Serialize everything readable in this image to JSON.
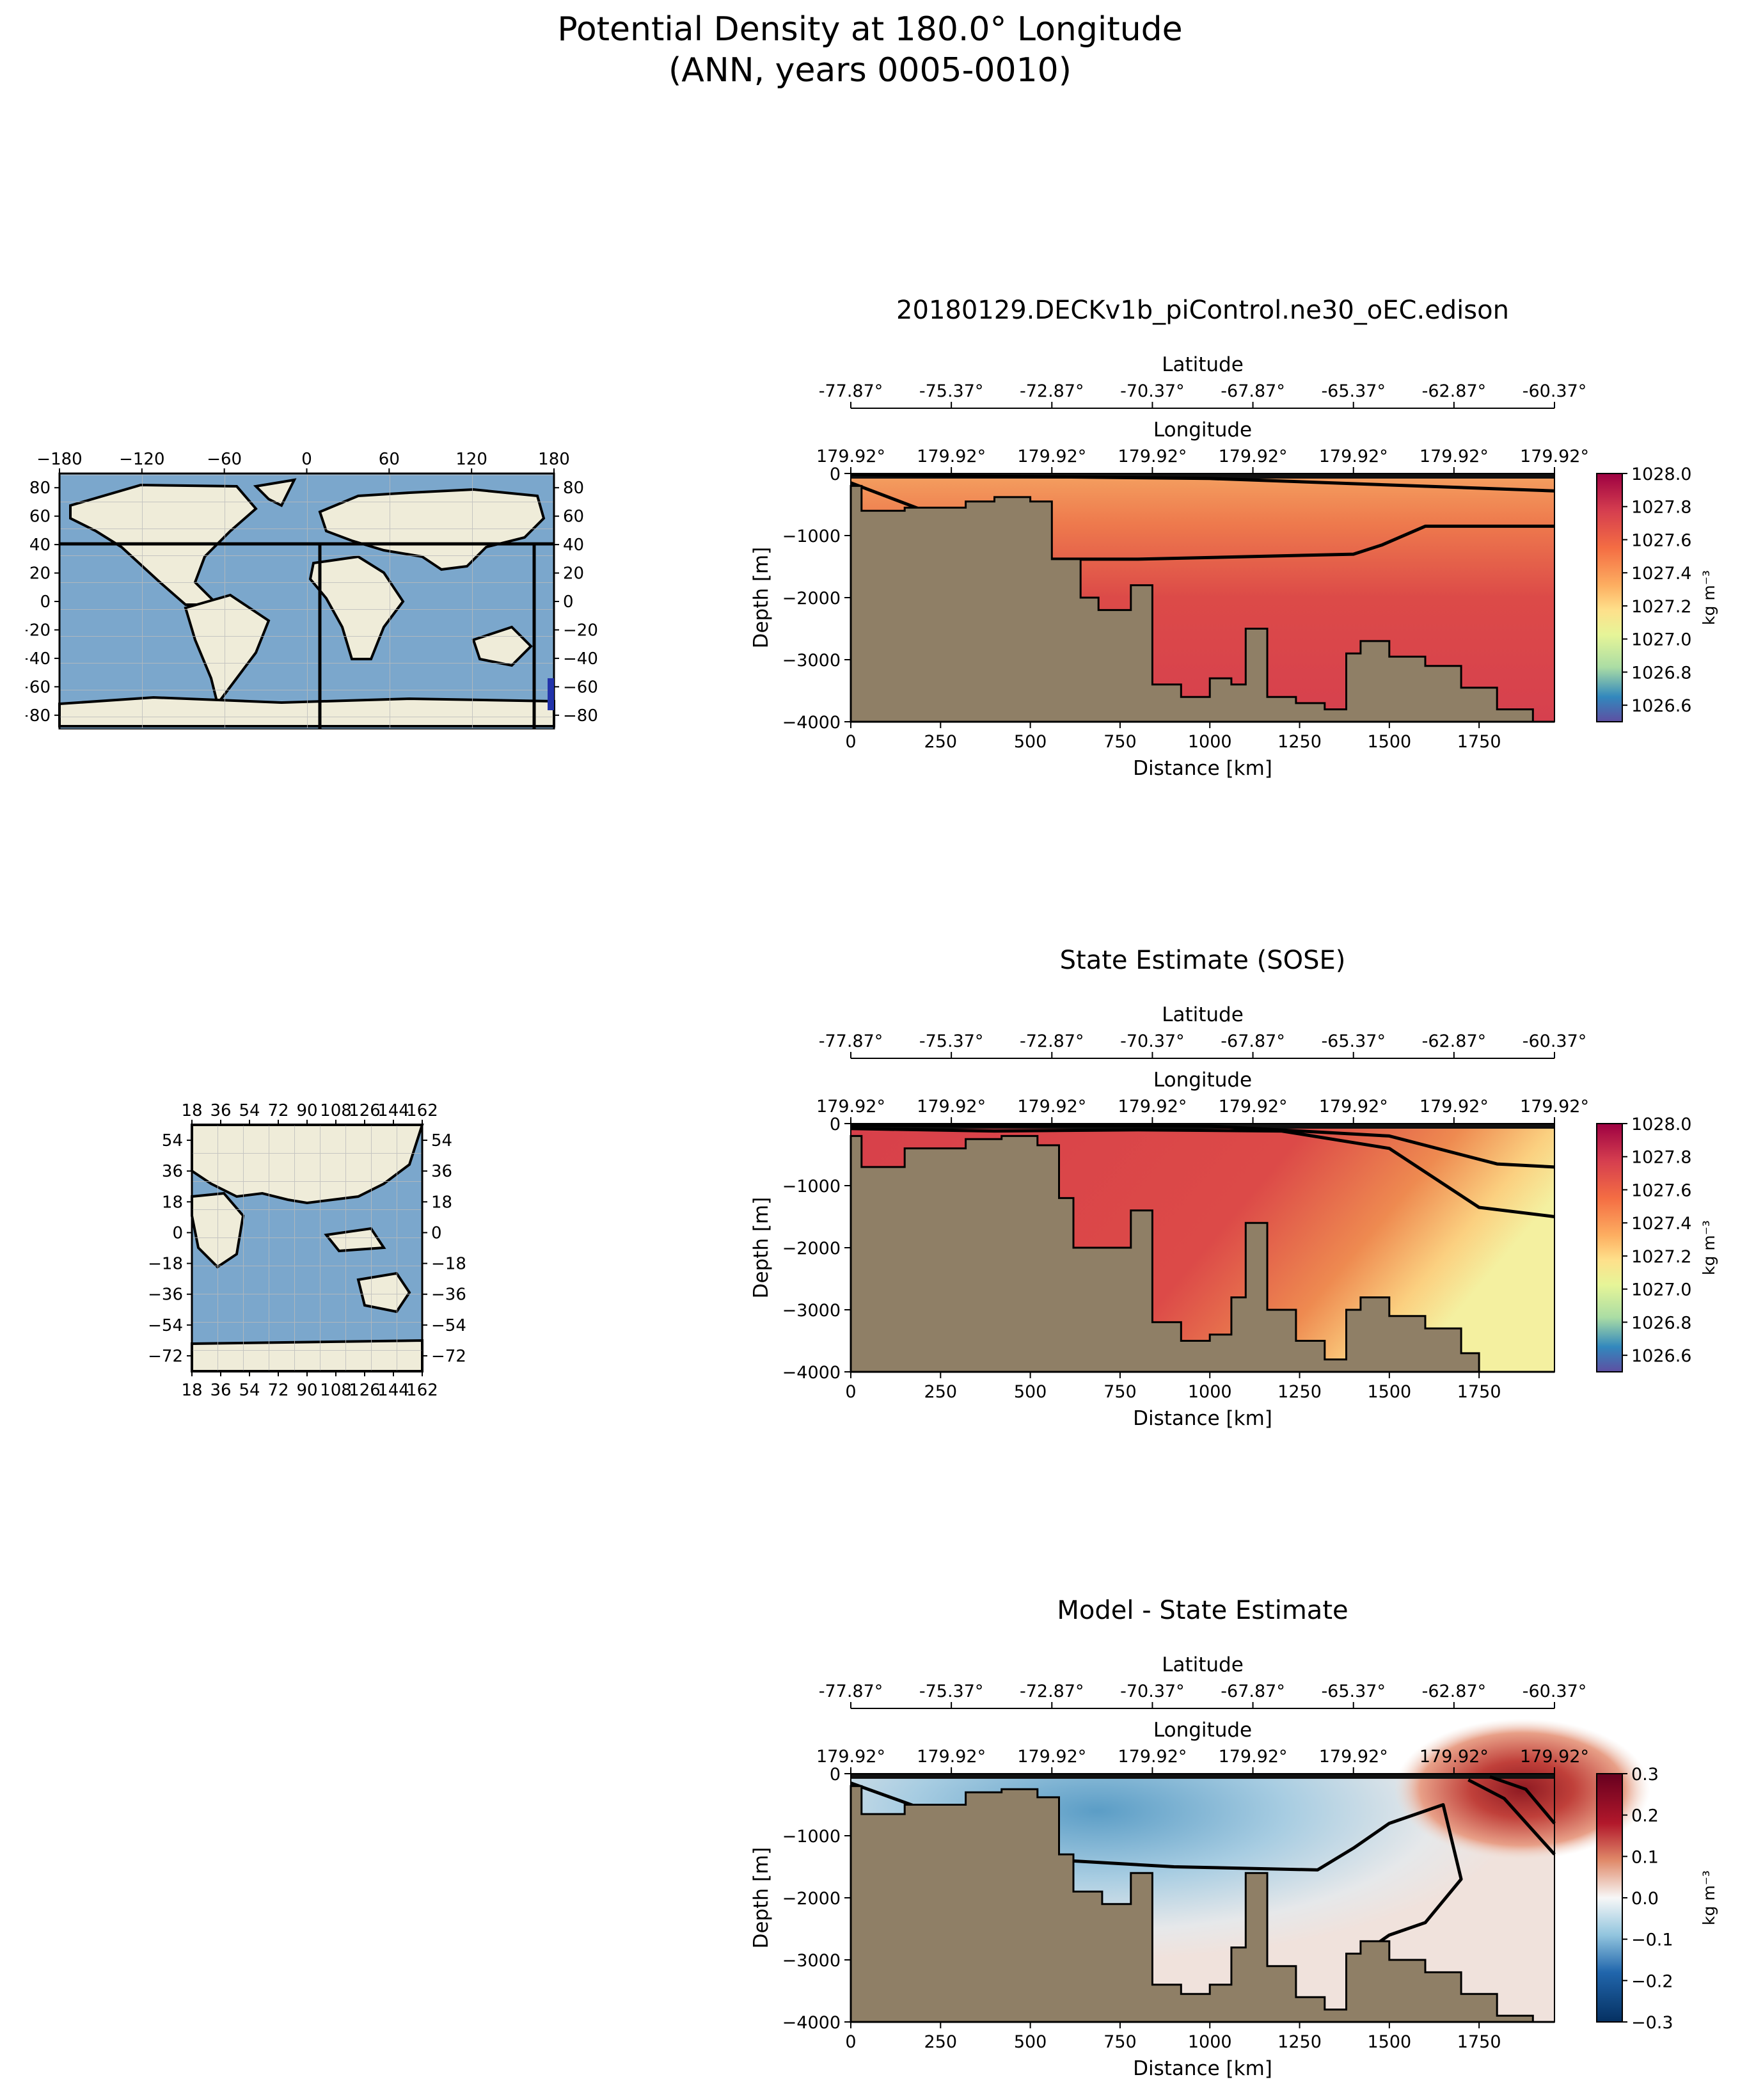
{
  "figure": {
    "title_line1": "Potential Density at 180.0° Longitude",
    "title_line2": "(ANN, years 0005-0010)"
  },
  "maps": [
    {
      "name": "global-map",
      "x_ticks": [
        "−180",
        "−120",
        "−60",
        "0",
        "60",
        "120",
        "180"
      ],
      "y_ticks": [
        "80",
        "60",
        "40",
        "20",
        "0",
        "−20",
        "−40",
        "−60",
        "−80"
      ]
    },
    {
      "name": "indo-pacific-map",
      "x_ticks": [
        "18",
        "36",
        "54",
        "72",
        "90",
        "108",
        "126",
        "144",
        "162"
      ],
      "y_ticks": [
        "54",
        "36",
        "18",
        "0",
        "−18",
        "−36",
        "−54",
        "−72"
      ]
    }
  ],
  "panels": [
    {
      "title": "20180129.DECKv1b_piControl.ne30_oEC.edison",
      "colorbar_ticks": [
        "1028.0",
        "1027.8",
        "1027.6",
        "1027.4",
        "1027.2",
        "1027.0",
        "1026.8",
        "1026.6"
      ],
      "colorbar_label": "kg m⁻³"
    },
    {
      "title": "State Estimate (SOSE)",
      "colorbar_ticks": [
        "1028.0",
        "1027.8",
        "1027.6",
        "1027.4",
        "1027.2",
        "1027.0",
        "1026.8",
        "1026.6"
      ],
      "colorbar_label": "kg m⁻³"
    },
    {
      "title": "Model - State Estimate",
      "colorbar_ticks": [
        "0.3",
        "0.2",
        "0.1",
        "0.0",
        "−0.1",
        "−0.2",
        "−0.3"
      ],
      "colorbar_label": "kg m⁻³"
    }
  ],
  "axes": {
    "xlabel": "Distance [km]",
    "ylabel": "Depth [m]",
    "lat_label": "Latitude",
    "lon_label": "Longitude",
    "x_ticks": [
      "0",
      "250",
      "500",
      "750",
      "1000",
      "1250",
      "1500",
      "1750"
    ],
    "y_ticks": [
      "0",
      "−1000",
      "−2000",
      "−3000",
      "−4000"
    ],
    "lat_ticks": [
      "-77.87°",
      "-75.37°",
      "-72.87°",
      "-70.37°",
      "-67.87°",
      "-65.37°",
      "-62.87°",
      "-60.37°"
    ],
    "lon_ticks": [
      "179.92°",
      "179.92°",
      "179.92°",
      "179.92°",
      "179.92°",
      "179.92°",
      "179.92°",
      "179.92°"
    ]
  },
  "chart_data": [
    {
      "type": "heatmap",
      "title": "20180129.DECKv1b_piControl.ne30_oEC.edison",
      "xlabel": "Distance [km]",
      "ylabel": "Depth [m]",
      "xlim": [
        0,
        1960
      ],
      "ylim": [
        -4000,
        0
      ],
      "colorbar_range": [
        1026.5,
        1028.0
      ],
      "colormap": "Spectral_r",
      "contours": [
        {
          "x": [
            0,
            560,
            800,
            1400,
            1480,
            1600,
            1960
          ],
          "y": [
            -150,
            -1380,
            -1380,
            -1300,
            -1150,
            -850,
            -850
          ]
        },
        {
          "x": [
            0,
            1000,
            1960
          ],
          "y": [
            -20,
            -80,
            -280
          ]
        }
      ],
      "bathymetry": {
        "x": [
          0,
          30,
          150,
          320,
          400,
          500,
          560,
          640,
          690,
          780,
          840,
          920,
          1000,
          1060,
          1100,
          1160,
          1240,
          1320,
          1380,
          1420,
          1500,
          1600,
          1700,
          1800,
          1900,
          1960
        ],
        "y": [
          -200,
          -600,
          -550,
          -450,
          -380,
          -450,
          -1380,
          -2000,
          -2200,
          -1800,
          -3400,
          -3600,
          -3300,
          -3400,
          -2500,
          -3600,
          -3700,
          -3800,
          -2900,
          -2700,
          -2950,
          -3100,
          -3450,
          -3800,
          -4000,
          -4000
        ]
      }
    },
    {
      "type": "heatmap",
      "title": "State Estimate (SOSE)",
      "xlabel": "Distance [km]",
      "ylabel": "Depth [m]",
      "xlim": [
        0,
        1960
      ],
      "ylim": [
        -4000,
        0
      ],
      "colorbar_range": [
        1026.5,
        1028.0
      ],
      "colormap": "Spectral_r",
      "contours": [
        {
          "x": [
            0,
            400,
            800,
            1200,
            1500,
            1750,
            1960
          ],
          "y": [
            -80,
            -120,
            -100,
            -120,
            -400,
            -1350,
            -1500
          ]
        },
        {
          "x": [
            0,
            1000,
            1500,
            1800,
            1960
          ],
          "y": [
            -30,
            -40,
            -200,
            -650,
            -700
          ]
        }
      ],
      "bathymetry": {
        "x": [
          0,
          30,
          150,
          320,
          420,
          520,
          580,
          620,
          700,
          780,
          840,
          920,
          1000,
          1060,
          1100,
          1160,
          1240,
          1320,
          1380,
          1420,
          1500,
          1600,
          1700,
          1750,
          1960
        ],
        "y": [
          -200,
          -700,
          -400,
          -250,
          -200,
          -350,
          -1200,
          -2000,
          -2000,
          -1400,
          -3200,
          -3500,
          -3400,
          -2800,
          -1600,
          -3000,
          -3500,
          -3800,
          -3000,
          -2800,
          -3100,
          -3300,
          -3700,
          -4000,
          -4000
        ]
      }
    },
    {
      "type": "heatmap",
      "title": "Model - State Estimate",
      "xlabel": "Distance [km]",
      "ylabel": "Depth [m]",
      "xlim": [
        0,
        1960
      ],
      "ylim": [
        -4000,
        0
      ],
      "colorbar_range": [
        -0.3,
        0.3
      ],
      "colormap": "RdBu_r",
      "contours": [
        {
          "x": [
            0,
            600,
            900,
            1300,
            1400,
            1500,
            1650,
            1700,
            1600,
            1500,
            1400
          ],
          "y": [
            -150,
            -1400,
            -1500,
            -1550,
            -1200,
            -800,
            -500,
            -1700,
            -2400,
            -2600,
            -3000
          ]
        },
        {
          "x": [
            1720,
            1820,
            1960
          ],
          "y": [
            -100,
            -400,
            -1300
          ]
        },
        {
          "x": [
            1780,
            1880,
            1960
          ],
          "y": [
            -50,
            -250,
            -800
          ]
        }
      ],
      "bathymetry": {
        "x": [
          0,
          30,
          150,
          320,
          420,
          520,
          580,
          620,
          700,
          780,
          840,
          920,
          1000,
          1060,
          1100,
          1160,
          1240,
          1320,
          1380,
          1420,
          1500,
          1600,
          1700,
          1800,
          1900,
          1960
        ],
        "y": [
          -200,
          -650,
          -500,
          -300,
          -250,
          -380,
          -1300,
          -1900,
          -2100,
          -1600,
          -3400,
          -3550,
          -3400,
          -2800,
          -1600,
          -3100,
          -3600,
          -3800,
          -2900,
          -2700,
          -3000,
          -3200,
          -3550,
          -3900,
          -4000,
          -4000
        ]
      }
    }
  ]
}
